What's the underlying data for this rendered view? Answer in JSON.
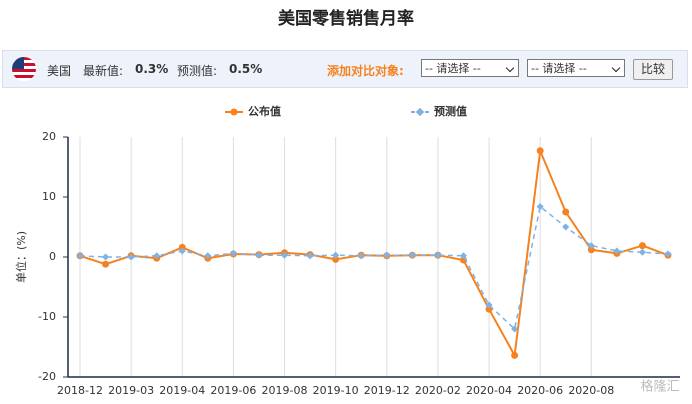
{
  "header": {
    "title": "美国零售销售月率"
  },
  "toolbar": {
    "country": "美国",
    "latest_label": "最新值:",
    "latest_value": "0.3%",
    "forecast_label": "预测值:",
    "forecast_value": "0.5%",
    "compare_label": "添加对比对象:",
    "select_options": [
      "-- 请选择 --",
      "-- 请选择 --"
    ],
    "button": "比较"
  },
  "chart_data": {
    "type": "line",
    "y_label": "单位：(%)",
    "categories": [
      "2018-12",
      null,
      "2019-03",
      null,
      "2019-04",
      null,
      "2019-06",
      null,
      "2019-08",
      null,
      "2019-10",
      null,
      "2019-12",
      null,
      "2020-02",
      null,
      "2020-04",
      null,
      "2020-06",
      null,
      "2020-08",
      null,
      null,
      null
    ],
    "series": [
      {
        "name": "公布值",
        "color": "#f5821f",
        "values": [
          0.2,
          -1.2,
          0.2,
          -0.2,
          1.6,
          -0.2,
          0.5,
          0.4,
          0.7,
          0.4,
          -0.4,
          0.3,
          0.2,
          0.3,
          0.3,
          -0.5,
          -8.7,
          -16.4,
          17.7,
          7.5,
          1.2,
          0.6,
          1.9,
          0.3
        ]
      },
      {
        "name": "预测值",
        "color": "#7fb2e5",
        "values": [
          0.2,
          0.0,
          0.0,
          0.2,
          1.0,
          0.2,
          0.6,
          0.3,
          0.3,
          0.2,
          0.3,
          0.2,
          0.3,
          0.3,
          0.3,
          0.2,
          -8.0,
          -12.0,
          8.4,
          5.0,
          1.9,
          1.0,
          0.8,
          0.5
        ]
      }
    ],
    "ylim": [
      -20,
      20
    ],
    "yticks": [
      -20,
      -10,
      0,
      10,
      20
    ],
    "grid": true
  },
  "watermark": "格隆汇"
}
